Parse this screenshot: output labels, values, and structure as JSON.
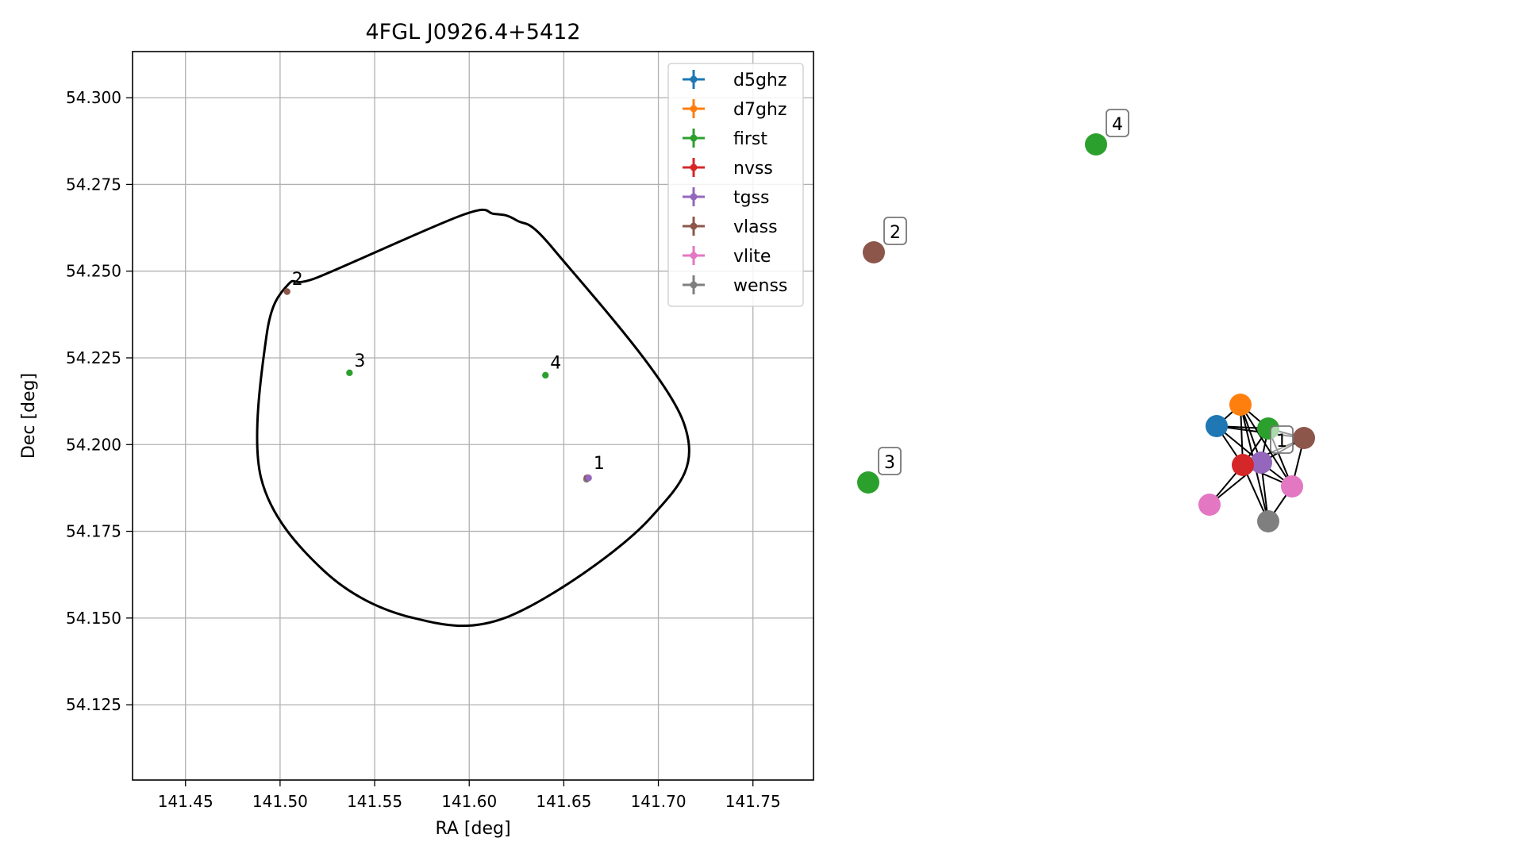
{
  "chart_data": [
    {
      "type": "scatter",
      "title": "4FGL J0926.4+5412",
      "xlabel": "RA [deg]",
      "ylabel": "Dec [deg]",
      "xlim": [
        141.422,
        141.782
      ],
      "ylim": [
        54.1033,
        54.3133
      ],
      "x_ticks": [
        "141.45",
        "141.50",
        "141.55",
        "141.60",
        "141.65",
        "141.70",
        "141.75"
      ],
      "x_tick_values": [
        141.45,
        141.5,
        141.55,
        141.6,
        141.65,
        141.7,
        141.75
      ],
      "y_ticks": [
        "54.125",
        "54.150",
        "54.175",
        "54.200",
        "54.225",
        "54.250",
        "54.275",
        "54.300"
      ],
      "y_tick_values": [
        54.125,
        54.15,
        54.175,
        54.2,
        54.225,
        54.25,
        54.275,
        54.3
      ],
      "grid": true,
      "legend_position": "top-right",
      "legend": [
        "d5ghz",
        "d7ghz",
        "first",
        "nvss",
        "tgss",
        "vlass",
        "vlite",
        "wenss"
      ],
      "colors": {
        "d5ghz": "#1f77b4",
        "d7ghz": "#ff7f0e",
        "first": "#2ca02c",
        "nvss": "#d62728",
        "tgss": "#9467bd",
        "vlass": "#8c564b",
        "vlite": "#e377c2",
        "wenss": "#7f7f7f"
      },
      "ellipse": {
        "center": [
          141.602,
          54.2082
        ],
        "ra_offsets": [
          -0.0055,
          0.0112,
          0.0229,
          0.0431,
          0.1113,
          0.0937,
          0.0195,
          -0.0328,
          -0.0788,
          -0.1121,
          -0.1091,
          -0.0978,
          -0.0817
        ],
        "dec_offsets": [
          0.058,
          0.0583,
          0.0565,
          0.0478,
          -0.0018,
          -0.0294,
          -0.0576,
          -0.058,
          -0.0446,
          -0.0177,
          0.0235,
          0.0379,
          0.0401
        ]
      },
      "points": [
        {
          "catalog": "d5ghz",
          "ra": 141.6622,
          "dec": 54.1904
        },
        {
          "catalog": "d7ghz",
          "ra": 141.6626,
          "dec": 54.1905
        },
        {
          "catalog": "first",
          "ra": 141.6624,
          "dec": 54.1903
        },
        {
          "catalog": "nvss",
          "ra": 141.6621,
          "dec": 54.1902
        },
        {
          "catalog": "vlite",
          "ra": 141.6628,
          "dec": 54.1904
        },
        {
          "catalog": "wenss",
          "ra": 141.662,
          "dec": 54.19
        },
        {
          "catalog": "vlass",
          "ra": 141.6625,
          "dec": 54.1903
        },
        {
          "catalog": "tgss",
          "ra": 141.6631,
          "dec": 54.1904
        },
        {
          "catalog": "vlass",
          "ra": 141.5037,
          "dec": 54.2441
        },
        {
          "catalog": "first",
          "ra": 141.5367,
          "dec": 54.2207
        },
        {
          "catalog": "first",
          "ra": 141.6403,
          "dec": 54.22
        }
      ],
      "annotations": [
        {
          "text": "1",
          "ra": 141.6632,
          "dec": 54.1912
        },
        {
          "text": "2",
          "ra": 141.5037,
          "dec": 54.2442
        },
        {
          "text": "3",
          "ra": 141.5367,
          "dec": 54.2207
        },
        {
          "text": "4",
          "ra": 141.6403,
          "dec": 54.2201
        }
      ]
    },
    {
      "type": "network",
      "labels": [
        "1",
        "2",
        "3",
        "4"
      ],
      "nodes": [
        {
          "catalog": "d5ghz",
          "color": "#1f77b4"
        },
        {
          "catalog": "d7ghz",
          "color": "#ff7f0e"
        },
        {
          "catalog": "first",
          "color": "#2ca02c"
        },
        {
          "catalog": "vlass",
          "color": "#8c564b"
        },
        {
          "catalog": "tgss",
          "color": "#9467bd"
        },
        {
          "catalog": "nvss",
          "color": "#d62728"
        },
        {
          "catalog": "vlite",
          "color": "#e377c2"
        },
        {
          "catalog": "vlite",
          "color": "#e377c2"
        },
        {
          "catalog": "wenss",
          "color": "#7f7f7f"
        },
        {
          "catalog": "vlass",
          "color": "#8c564b",
          "label": "2"
        },
        {
          "catalog": "first",
          "color": "#2ca02c",
          "label": "3"
        },
        {
          "catalog": "first",
          "color": "#2ca02c",
          "label": "4"
        }
      ]
    }
  ]
}
